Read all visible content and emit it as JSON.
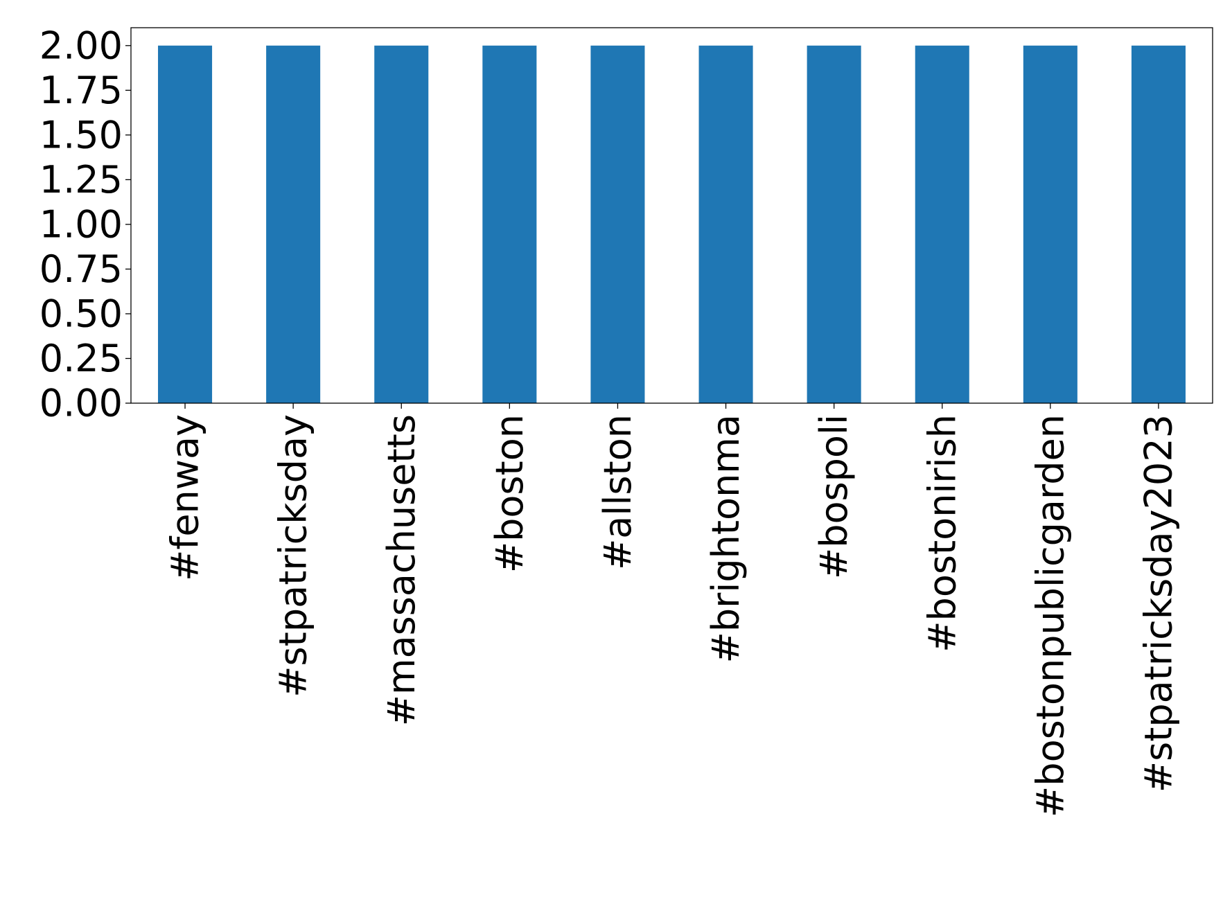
{
  "chart_data": {
    "type": "bar",
    "title": "",
    "xlabel": "",
    "ylabel": "",
    "categories": [
      "#fenway",
      "#stpatricksday",
      "#massachusetts",
      "#boston",
      "#allston",
      "#brightonma",
      "#bospoli",
      "#bostonirish",
      "#bostonpublicgarden",
      "#stpatricksday2023"
    ],
    "values": [
      2,
      2,
      2,
      2,
      2,
      2,
      2,
      2,
      2,
      2
    ],
    "ylim": [
      0,
      2.1
    ],
    "yticks": [
      0,
      0.25,
      0.5,
      0.75,
      1.0,
      1.25,
      1.5,
      1.75,
      2.0
    ],
    "ytick_labels": [
      "0.00",
      "0.25",
      "0.50",
      "0.75",
      "1.00",
      "1.25",
      "1.50",
      "1.75",
      "2.00"
    ],
    "grid": false,
    "legend": "none",
    "bar_color": "#1f77b4"
  }
}
